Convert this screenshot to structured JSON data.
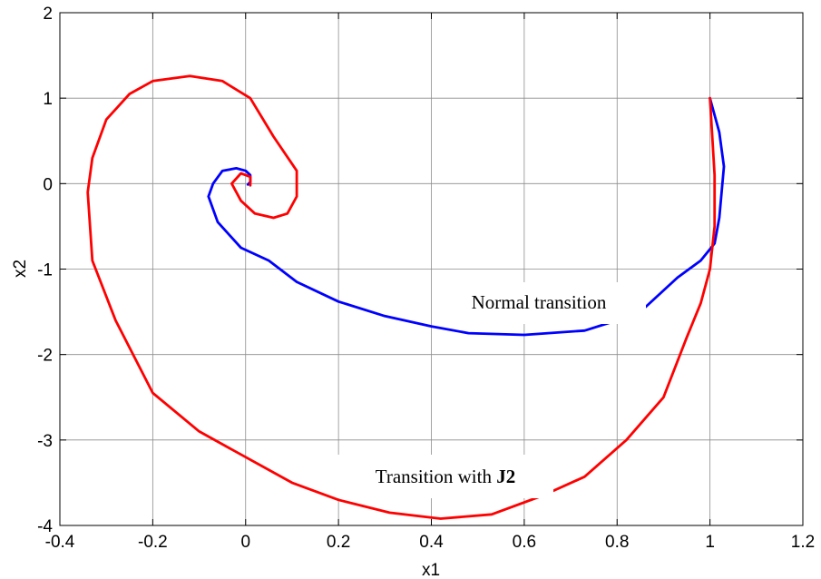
{
  "chart_data": {
    "type": "line",
    "title": "",
    "xlabel": "x1",
    "ylabel": "x2",
    "xlim": [
      -0.4,
      1.2
    ],
    "ylim": [
      -4,
      2
    ],
    "xticks": [
      "-0.4",
      "-0.2",
      "0",
      "0.2",
      "0.4",
      "0.6",
      "0.8",
      "1",
      "1.2"
    ],
    "yticks": [
      "2",
      "1",
      "0",
      "-1",
      "-2",
      "-3",
      "-4"
    ],
    "grid": true,
    "series": [
      {
        "color": "#0000ff",
        "x": [
          1.0,
          1.02,
          1.03,
          1.02,
          1.01,
          0.98,
          0.93,
          0.85,
          0.8,
          0.73,
          0.6,
          0.48,
          0.4,
          0.3,
          0.2,
          0.11,
          0.05,
          -0.01,
          -0.06,
          -0.08,
          -0.07,
          -0.05,
          -0.02,
          0.0,
          0.01,
          0.01,
          0.005
        ],
        "y": [
          1.0,
          0.6,
          0.2,
          -0.4,
          -0.7,
          -0.9,
          -1.1,
          -1.5,
          -1.6,
          -1.72,
          -1.77,
          -1.75,
          -1.67,
          -1.55,
          -1.38,
          -1.15,
          -0.9,
          -0.75,
          -0.45,
          -0.15,
          0.0,
          0.15,
          0.18,
          0.15,
          0.1,
          0.02,
          -0.01
        ]
      },
      {
        "color": "#ff0000",
        "x": [
          1.0,
          1.01,
          1.01,
          1.0,
          0.98,
          0.95,
          0.9,
          0.82,
          0.73,
          0.64,
          0.53,
          0.42,
          0.31,
          0.2,
          0.1,
          0.0,
          -0.1,
          -0.2,
          -0.28,
          -0.33,
          -0.34,
          -0.33,
          -0.3,
          -0.25,
          -0.2,
          -0.12,
          -0.05,
          0.01,
          0.06,
          0.11,
          0.11,
          0.09,
          0.06,
          0.02,
          -0.01,
          -0.03,
          -0.01,
          0.01,
          0.01
        ],
        "y": [
          1.0,
          0.1,
          -0.5,
          -1.0,
          -1.4,
          -1.8,
          -2.5,
          -3.0,
          -3.43,
          -3.65,
          -3.87,
          -3.92,
          -3.85,
          -3.7,
          -3.5,
          -3.2,
          -2.9,
          -2.45,
          -1.6,
          -0.9,
          -0.1,
          0.3,
          0.75,
          1.05,
          1.2,
          1.26,
          1.2,
          1.0,
          0.55,
          0.15,
          -0.15,
          -0.35,
          -0.4,
          -0.35,
          -0.2,
          0.0,
          0.12,
          0.08,
          -0.02
        ]
      }
    ],
    "annotations": [
      {
        "text": "Normal transition",
        "x": 0.63,
        "y": -1.37
      },
      {
        "text": "Transition with ",
        "bold": "J2",
        "x": 0.54,
        "y": -3.45
      }
    ]
  }
}
